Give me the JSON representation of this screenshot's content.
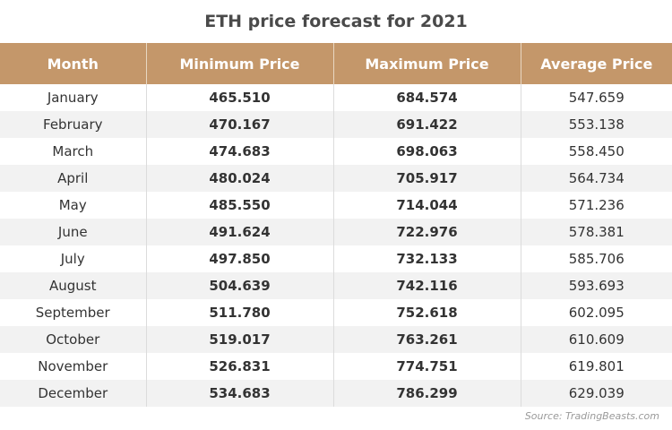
{
  "chart_data": {
    "type": "table",
    "title": "ETH price forecast for 2021",
    "columns": [
      "Month",
      "Minimum Price",
      "Maximum Price",
      "Average Price"
    ],
    "rows": [
      [
        "January",
        "465.510",
        "684.574",
        "547.659"
      ],
      [
        "February",
        "470.167",
        "691.422",
        "553.138"
      ],
      [
        "March",
        "474.683",
        "698.063",
        "558.450"
      ],
      [
        "April",
        "480.024",
        "705.917",
        "564.734"
      ],
      [
        "May",
        "485.550",
        "714.044",
        "571.236"
      ],
      [
        "June",
        "491.624",
        "722.976",
        "578.381"
      ],
      [
        "July",
        "497.850",
        "732.133",
        "585.706"
      ],
      [
        "August",
        "504.639",
        "742.116",
        "593.693"
      ],
      [
        "September",
        "511.780",
        "752.618",
        "602.095"
      ],
      [
        "October",
        "519.017",
        "763.261",
        "610.609"
      ],
      [
        "November",
        "526.831",
        "774.751",
        "619.801"
      ],
      [
        "December",
        "534.683",
        "786.299",
        "629.039"
      ]
    ],
    "source": "Source: TradingBeasts.com"
  },
  "colors": {
    "header_background": "#c4976a",
    "header_text": "#ffffff",
    "stripe": "#f2f2f2"
  }
}
